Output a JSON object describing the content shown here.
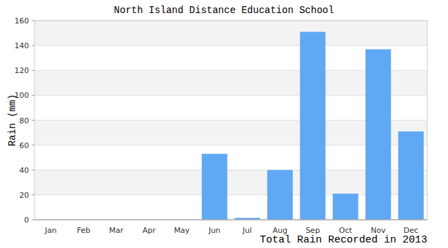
{
  "chart_data": {
    "type": "bar",
    "title": "North Island Distance Education School",
    "subtitle": "Total Rain Recorded in 2013",
    "y_label": "Rain (mm)",
    "categories": [
      "Jan",
      "Feb",
      "Mar",
      "Apr",
      "May",
      "Jun",
      "Jul",
      "Aug",
      "Sep",
      "Oct",
      "Nov",
      "Dec"
    ],
    "values": [
      0,
      0,
      0,
      0,
      0,
      53,
      1.5,
      40,
      151,
      21,
      137,
      71
    ],
    "color": "#60a8f4",
    "ylim": [
      0,
      160
    ],
    "yticks": [
      0,
      20,
      40,
      60,
      80,
      100,
      120,
      140,
      160
    ],
    "grid": true
  }
}
